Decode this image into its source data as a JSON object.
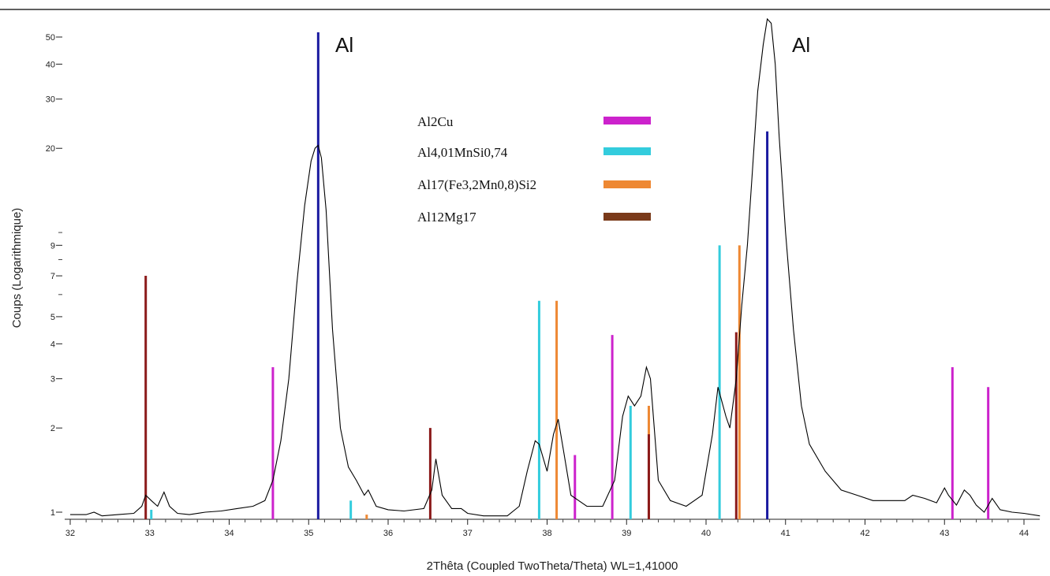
{
  "chart_data": {
    "type": "line",
    "xlabel": "2Thêta (Coupled TwoTheta/Theta) WL=1,41000",
    "ylabel": "Coups (Logarithmique)",
    "xlim": [
      32,
      44.2
    ],
    "ylim": [
      0.98,
      58
    ],
    "y_scale": "log",
    "grid": false,
    "legend_position": "top-center",
    "x_ticks": [
      32,
      33,
      34,
      35,
      36,
      37,
      38,
      39,
      40,
      41,
      42,
      43,
      44
    ],
    "y_ticks_labeled": [
      1,
      2,
      3,
      4,
      5,
      7,
      9,
      20,
      30,
      40,
      50
    ],
    "y_ticks_minor": [
      6,
      8,
      10
    ],
    "annotations": [
      {
        "text": "Al",
        "x": 35.45,
        "y": 50
      },
      {
        "text": "Al",
        "x": 41.2,
        "y": 50
      }
    ],
    "legend": [
      {
        "name": "Al2Cu",
        "color": "#cc22cc"
      },
      {
        "name": "Al4,01MnSi0,74",
        "color": "#33ccdd"
      },
      {
        "name": "Al17(Fe3,2Mn0,8)Si2",
        "color": "#ee8833"
      },
      {
        "name": "Al12Mg17",
        "color": "#7a3a1a"
      }
    ],
    "reference_lines": [
      {
        "phase": "Al",
        "color": "#1a1aa0",
        "peaks": [
          [
            35.12,
            52
          ],
          [
            40.77,
            23
          ]
        ]
      },
      {
        "phase": "Al2Cu",
        "color": "#cc22cc",
        "peaks": [
          [
            34.55,
            3.3
          ],
          [
            38.35,
            1.6
          ],
          [
            38.82,
            4.3
          ],
          [
            43.1,
            3.3
          ],
          [
            43.55,
            2.8
          ]
        ]
      },
      {
        "phase": "Al4,01MnSi0,74",
        "color": "#33ccdd",
        "peaks": [
          [
            33.02,
            1.02
          ],
          [
            35.53,
            1.1
          ],
          [
            37.9,
            5.7
          ],
          [
            39.05,
            2.4
          ],
          [
            40.17,
            9.0
          ]
        ]
      },
      {
        "phase": "Al17(Fe3,2Mn0,8)Si2",
        "color": "#ee8833",
        "peaks": [
          [
            35.73,
            0.98
          ],
          [
            38.12,
            5.7
          ],
          [
            39.28,
            2.4
          ],
          [
            40.42,
            9.0
          ]
        ]
      },
      {
        "phase": "Al12Mg17",
        "color": "#8b1a1a",
        "peaks": [
          [
            32.95,
            7.0
          ],
          [
            36.53,
            2.0
          ],
          [
            39.28,
            1.9
          ],
          [
            40.38,
            4.4
          ]
        ]
      }
    ],
    "series": [
      {
        "color": "#000000",
        "x": [
          32.0,
          32.2,
          32.3,
          32.4,
          32.6,
          32.8,
          32.9,
          32.95,
          33.02,
          33.1,
          33.18,
          33.25,
          33.35,
          33.5,
          33.7,
          33.9,
          34.1,
          34.3,
          34.45,
          34.55,
          34.65,
          34.75,
          34.85,
          34.95,
          35.03,
          35.08,
          35.12,
          35.16,
          35.22,
          35.3,
          35.4,
          35.5,
          35.6,
          35.7,
          35.75,
          35.85,
          36.0,
          36.2,
          36.45,
          36.55,
          36.6,
          36.68,
          36.8,
          36.92,
          37.0,
          37.2,
          37.5,
          37.65,
          37.75,
          37.85,
          37.9,
          38.0,
          38.08,
          38.14,
          38.2,
          38.3,
          38.5,
          38.7,
          38.85,
          38.95,
          39.02,
          39.1,
          39.18,
          39.25,
          39.3,
          39.4,
          39.55,
          39.75,
          39.95,
          40.08,
          40.15,
          40.25,
          40.3,
          40.38,
          40.45,
          40.52,
          40.58,
          40.65,
          40.72,
          40.77,
          40.82,
          40.87,
          40.92,
          41.0,
          41.1,
          41.2,
          41.3,
          41.5,
          41.7,
          41.9,
          42.1,
          42.3,
          42.5,
          42.6,
          42.75,
          42.9,
          43.0,
          43.05,
          43.15,
          43.25,
          43.32,
          43.4,
          43.5,
          43.6,
          43.7,
          43.85,
          44.0,
          44.2
        ],
        "y": [
          0.98,
          0.98,
          1.0,
          0.97,
          0.98,
          0.99,
          1.05,
          1.15,
          1.1,
          1.05,
          1.18,
          1.05,
          0.99,
          0.98,
          1.0,
          1.01,
          1.03,
          1.05,
          1.1,
          1.3,
          1.8,
          3.0,
          6.5,
          12.5,
          18.0,
          20.0,
          20.5,
          18.5,
          12.0,
          4.5,
          2.0,
          1.45,
          1.3,
          1.15,
          1.2,
          1.05,
          1.02,
          1.01,
          1.03,
          1.2,
          1.55,
          1.15,
          1.03,
          1.03,
          0.99,
          0.97,
          0.97,
          1.05,
          1.4,
          1.8,
          1.75,
          1.4,
          1.9,
          2.15,
          1.7,
          1.15,
          1.05,
          1.05,
          1.3,
          2.2,
          2.6,
          2.4,
          2.6,
          3.3,
          3.0,
          1.3,
          1.1,
          1.05,
          1.15,
          1.9,
          2.8,
          2.2,
          2.0,
          3.0,
          5.5,
          9.0,
          16.0,
          32.0,
          47.0,
          58.0,
          56.0,
          40.0,
          22.0,
          10.0,
          4.5,
          2.4,
          1.75,
          1.4,
          1.2,
          1.15,
          1.1,
          1.1,
          1.1,
          1.15,
          1.12,
          1.08,
          1.22,
          1.15,
          1.06,
          1.2,
          1.15,
          1.06,
          1.0,
          1.12,
          1.02,
          1.0,
          0.99,
          0.97
        ]
      }
    ]
  }
}
